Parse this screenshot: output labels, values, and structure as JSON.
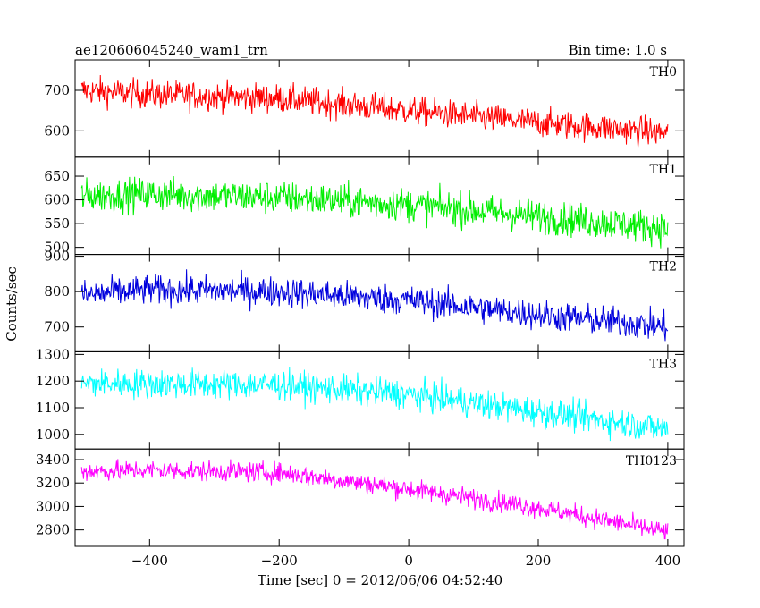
{
  "header": {
    "title": "ae120606045240_wam1_trn",
    "bin_time": "Bin time: 1.0 s"
  },
  "chart_data": {
    "type": "line",
    "xlabel": "Time [sec] 0 = 2012/06/06 04:52:40",
    "ylabel": "Counts/sec",
    "xlim": [
      -515,
      425
    ],
    "x_ticks": [
      -400,
      -200,
      0,
      200,
      400
    ],
    "x_tick_labels": [
      "−400",
      "−200",
      "0",
      "200",
      "400"
    ],
    "x_range": [
      -505,
      400
    ],
    "bin_time_s": 1.0,
    "panels": [
      {
        "name": "TH0",
        "color": "#ff0000",
        "ylim": [
          535,
          775
        ],
        "y_ticks": [
          600,
          700
        ],
        "y_tick_labels": [
          "600",
          "700"
        ],
        "trend": [
          [
            -505,
            700
          ],
          [
            -400,
            690
          ],
          [
            -200,
            680
          ],
          [
            0,
            650
          ],
          [
            200,
            620
          ],
          [
            400,
            595
          ]
        ],
        "noise_amplitude": 35
      },
      {
        "name": "TH1",
        "color": "#00ee00",
        "ylim": [
          485,
          690
        ],
        "y_ticks": [
          500,
          550,
          600,
          650
        ],
        "y_tick_labels": [
          "500",
          "550",
          "600",
          "650"
        ],
        "trend": [
          [
            -505,
            608
          ],
          [
            -400,
            612
          ],
          [
            -200,
            605
          ],
          [
            0,
            590
          ],
          [
            200,
            565
          ],
          [
            400,
            540
          ]
        ],
        "noise_amplitude": 35
      },
      {
        "name": "TH2",
        "color": "#0000dd",
        "ylim": [
          630,
          905
        ],
        "y_ticks": [
          700,
          800,
          900
        ],
        "y_tick_labels": [
          "700",
          "800",
          "900"
        ],
        "trend": [
          [
            -505,
            790
          ],
          [
            -400,
            805
          ],
          [
            -200,
            800
          ],
          [
            0,
            775
          ],
          [
            200,
            735
          ],
          [
            400,
            700
          ]
        ],
        "noise_amplitude": 42
      },
      {
        "name": "TH3",
        "color": "#00ffff",
        "ylim": [
          945,
          1310
        ],
        "y_ticks": [
          1000,
          1100,
          1200,
          1300
        ],
        "y_tick_labels": [
          "1000",
          "1100",
          "1200",
          "1300"
        ],
        "trend": [
          [
            -505,
            1190
          ],
          [
            -400,
            1190
          ],
          [
            -200,
            1185
          ],
          [
            0,
            1150
          ],
          [
            200,
            1085
          ],
          [
            400,
            1020
          ]
        ],
        "noise_amplitude": 55
      },
      {
        "name": "TH0123",
        "color": "#ff00ff",
        "ylim": [
          2660,
          3490
        ],
        "y_ticks": [
          2800,
          3000,
          3200,
          3400
        ],
        "y_tick_labels": [
          "2800",
          "3000",
          "3200",
          "3400"
        ],
        "trend": [
          [
            -505,
            3300
          ],
          [
            -400,
            3310
          ],
          [
            -200,
            3290
          ],
          [
            0,
            3150
          ],
          [
            200,
            2990
          ],
          [
            400,
            2780
          ]
        ],
        "noise_amplitude": 85
      }
    ]
  }
}
